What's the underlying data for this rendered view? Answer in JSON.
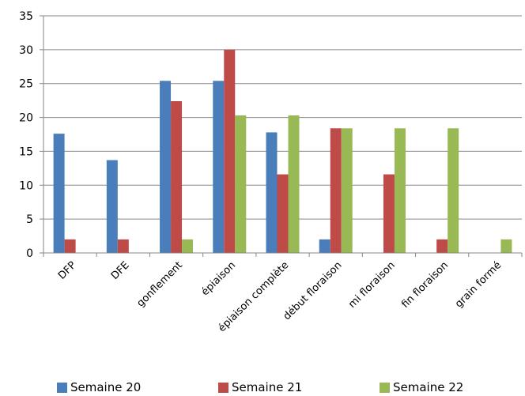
{
  "chart_data": {
    "type": "bar",
    "categories": [
      "DFP",
      "DFE",
      "gonflement",
      "épiaison",
      "épiaison complète",
      "début floraison",
      "mi floraison",
      "fin floraison",
      "grain formé"
    ],
    "series": [
      {
        "name": "Semaine 20",
        "color": "#4a7ebb",
        "values": [
          17.6,
          13.7,
          25.4,
          25.4,
          17.8,
          2.0,
          0,
          0,
          0
        ]
      },
      {
        "name": "Semaine 21",
        "color": "#be4b48",
        "values": [
          2.0,
          2.0,
          22.4,
          30.0,
          11.6,
          18.4,
          11.6,
          2.0,
          0
        ]
      },
      {
        "name": "Semaine 22",
        "color": "#98b954",
        "values": [
          0,
          0,
          2.0,
          20.3,
          20.3,
          18.4,
          18.4,
          18.4,
          2.0
        ]
      }
    ],
    "yticks": [
      "0",
      "5",
      "10",
      "15",
      "20",
      "25",
      "30",
      "35"
    ],
    "ylim": [
      0,
      35
    ],
    "grid": true,
    "legend": "bottom",
    "title": "",
    "xlabel": "",
    "ylabel": ""
  }
}
